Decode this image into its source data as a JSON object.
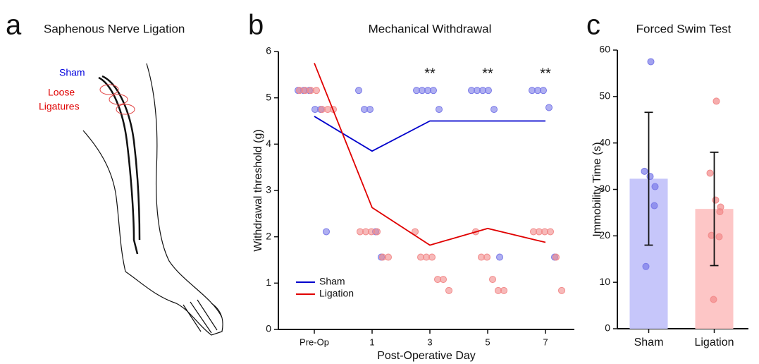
{
  "illustration": {
    "letter": "a",
    "title": "Saphenous Nerve Ligation",
    "labels": {
      "sham": "Sham",
      "ligature": [
        "Loose",
        "Ligatures"
      ]
    }
  },
  "chart_data": [
    {
      "type": "line",
      "panel": "b",
      "title": "Mechanical Withdrawal",
      "x_label": "Post-Operative Day",
      "y_label": "Withdrawal threshold (g)",
      "categories": [
        "Pre-Op",
        "1",
        "3",
        "5",
        "7"
      ],
      "significance": [
        null,
        null,
        "**",
        "**",
        "**"
      ],
      "ylim": [
        0,
        6
      ],
      "yticks": [
        0,
        1,
        2,
        3,
        4,
        5,
        6
      ],
      "legend": "lower-left",
      "series": [
        {
          "name": "Sham",
          "color": "#0000cc",
          "point_color": "#7a7ae8",
          "values": [
            4.6,
            3.85,
            4.5,
            4.5,
            4.5
          ],
          "points": [
            [
              5.16,
              5.16,
              5.16,
              4.75,
              4.75,
              2.11
            ],
            [
              5.16,
              4.75,
              4.75,
              2.11,
              1.56
            ],
            [
              5.16,
              5.16,
              5.16,
              5.16,
              4.75
            ],
            [
              5.16,
              5.16,
              5.16,
              5.16,
              4.75,
              1.56
            ],
            [
              5.16,
              5.16,
              5.16,
              4.79,
              1.56
            ]
          ]
        },
        {
          "name": "Ligation",
          "color": "#e00000",
          "point_color": "#f28a8a",
          "values": [
            5.75,
            2.63,
            1.82,
            2.18,
            1.88
          ],
          "points": [
            [
              5.16,
              5.16,
              5.16,
              5.16,
              4.75,
              4.75,
              4.75
            ],
            [
              2.11,
              2.11,
              2.11,
              2.11,
              1.56,
              1.56
            ],
            [
              2.11,
              1.56,
              1.56,
              1.56,
              1.08,
              1.08,
              0.84
            ],
            [
              2.11,
              1.56,
              1.56,
              1.08,
              0.84,
              0.84
            ],
            [
              2.11,
              2.11,
              2.11,
              2.11,
              1.56,
              0.84
            ]
          ]
        }
      ]
    },
    {
      "type": "bar",
      "panel": "c",
      "title": "Forced Swim Test",
      "y_label": "Immobility Time (s)",
      "categories": [
        "Sham",
        "Ligation"
      ],
      "values": [
        32.3,
        25.8
      ],
      "errors": [
        14.3,
        12.2
      ],
      "colors": [
        "#c6c6fa",
        "#fdc6c6"
      ],
      "point_colors": [
        "#7a7ae8",
        "#f28a8a"
      ],
      "points": [
        [
          57.5,
          33.9,
          32.8,
          30.6,
          26.5,
          13.4
        ],
        [
          49,
          33.5,
          27.7,
          26.2,
          25.2,
          20.1,
          19.8,
          6.3
        ]
      ],
      "ylim": [
        0,
        60
      ],
      "yticks": [
        0,
        10,
        20,
        30,
        40,
        50,
        60
      ]
    }
  ]
}
